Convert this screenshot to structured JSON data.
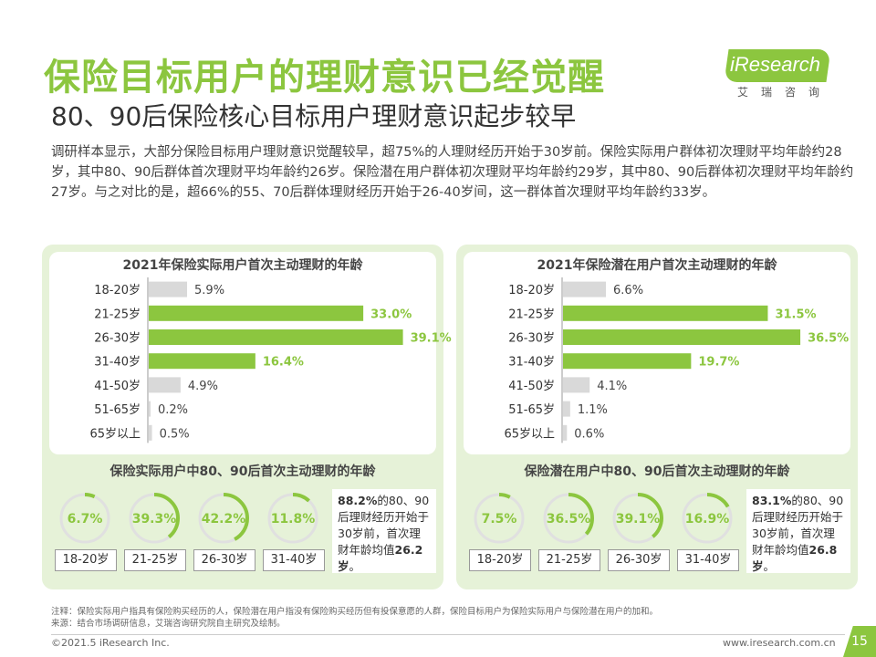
{
  "title": "保险目标用户的理财意识已经觉醒",
  "subtitle": "80、90后保险核心目标用户理财意识起步较早",
  "logo": {
    "name": "iResearch",
    "sub": "艾瑞咨询"
  },
  "intro": "调研样本显示，大部分保险目标用户理财意识觉醒较早，超75%的人理财经历开始于30岁前。保险实际用户群体初次理财平均年龄约28岁，其中80、90后群体首次理财平均年龄约26岁。保险潜在用户群体初次理财平均年龄约29岁，其中80、90后群体初次理财平均年龄约27岁。与之对比的是，超66%的55、70后群体理财经历开始于26-40岁间，这一群体首次理财平均年龄约33岁。",
  "colors": {
    "accent": "#8cc63f",
    "grey": "#d9d9d9",
    "panel": "#e6f2d8"
  },
  "chart_data": [
    {
      "type": "bar",
      "orientation": "horizontal",
      "title": "2021年保险实际用户首次主动理财的年龄",
      "categories": [
        "18-20岁",
        "21-25岁",
        "26-30岁",
        "31-40岁",
        "41-50岁",
        "51-65岁",
        "65岁以上"
      ],
      "values": [
        5.9,
        33.0,
        39.1,
        16.4,
        4.9,
        0.2,
        0.5
      ],
      "value_labels": [
        "5.9%",
        "33.0%",
        "39.1%",
        "16.4%",
        "4.9%",
        "0.2%",
        "0.5%"
      ],
      "highlight": [
        false,
        true,
        true,
        true,
        false,
        false,
        false
      ],
      "xlim": [
        0,
        40
      ]
    },
    {
      "type": "bar",
      "orientation": "horizontal",
      "title": "2021年保险潜在用户首次主动理财的年龄",
      "categories": [
        "18-20岁",
        "21-25岁",
        "26-30岁",
        "31-40岁",
        "41-50岁",
        "51-65岁",
        "65岁以上"
      ],
      "values": [
        6.6,
        31.5,
        36.5,
        19.7,
        4.1,
        1.1,
        0.6
      ],
      "value_labels": [
        "6.6%",
        "31.5%",
        "36.5%",
        "19.7%",
        "4.1%",
        "1.1%",
        "0.6%"
      ],
      "highlight": [
        false,
        true,
        true,
        true,
        false,
        false,
        false
      ],
      "xlim": [
        0,
        40
      ]
    },
    {
      "type": "pie",
      "title": "保险实际用户中80、90后首次主动理财的年龄",
      "categories": [
        "18-20岁",
        "21-25岁",
        "26-30岁",
        "31-40岁"
      ],
      "values": [
        6.7,
        39.3,
        42.2,
        11.8
      ],
      "value_labels": [
        "6.7%",
        "39.3%",
        "42.2%",
        "11.8%"
      ]
    },
    {
      "type": "pie",
      "title": "保险潜在用户中80、90后首次主动理财的年龄",
      "categories": [
        "18-20岁",
        "21-25岁",
        "26-30岁",
        "31-40岁"
      ],
      "values": [
        7.5,
        36.5,
        39.1,
        16.9
      ],
      "value_labels": [
        "7.5%",
        "36.5%",
        "39.1%",
        "16.9%"
      ]
    }
  ],
  "notes": {
    "left": {
      "pct": "88.2%",
      "text1": "的80、90后理财经历开始于30岁前，首次理财年龄均值",
      "avg": "26.2岁",
      "end": "。"
    },
    "right": {
      "pct": "83.1%",
      "text1": "的80、90后理财经历开始于30岁前，首次理财年龄均值",
      "avg": "26.8岁",
      "end": "。"
    }
  },
  "footnote1": "注释：保险实际用户指具有保险购买经历的人，保险潜在用户指没有保险购买经历但有投保意愿的人群，保险目标用户为保险实际用户与保险潜在用户的加和。",
  "footnote2": "来源：结合市场调研信息，艾瑞咨询研究院自主研究及绘制。",
  "copyright": "©2021.5 iResearch Inc.",
  "website": "www.iresearch.com.cn",
  "page_number": "15"
}
